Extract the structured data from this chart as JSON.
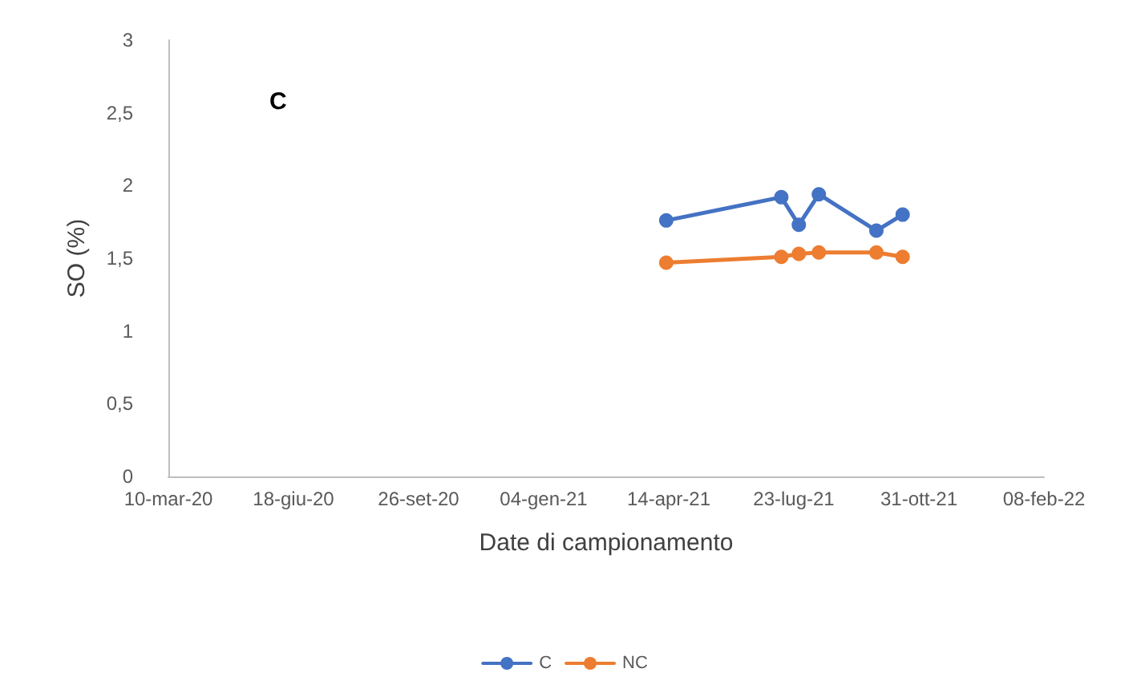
{
  "chart_data": {
    "type": "line",
    "xlabel": "Date di campionamento",
    "ylabel": "SO (%)",
    "annotations": [
      "C"
    ],
    "series": [
      {
        "name": "C",
        "color": "#4472c4",
        "x": [
          "2021-04-12",
          "2021-07-13",
          "2021-07-27",
          "2021-08-12",
          "2021-09-27",
          "2021-10-18"
        ],
        "values": [
          1.76,
          1.92,
          1.73,
          1.94,
          1.69,
          1.8
        ]
      },
      {
        "name": "NC",
        "color": "#ed7d31",
        "x": [
          "2021-04-12",
          "2021-07-13",
          "2021-07-27",
          "2021-08-12",
          "2021-09-27",
          "2021-10-18"
        ],
        "values": [
          1.47,
          1.51,
          1.53,
          1.54,
          1.54,
          1.51
        ]
      }
    ],
    "xlim": [
      "2020-03-10",
      "2022-02-08"
    ],
    "xticks": [
      {
        "value": "2020-03-10",
        "label": "10-mar-20"
      },
      {
        "value": "2020-06-18",
        "label": "18-giu-20"
      },
      {
        "value": "2020-09-26",
        "label": "26-set-20"
      },
      {
        "value": "2021-01-04",
        "label": "04-gen-21"
      },
      {
        "value": "2021-04-14",
        "label": "14-apr-21"
      },
      {
        "value": "2021-07-23",
        "label": "23-lug-21"
      },
      {
        "value": "2021-10-31",
        "label": "31-ott-21"
      },
      {
        "value": "2022-02-08",
        "label": "08-feb-22"
      }
    ],
    "ylim": [
      0,
      3
    ],
    "yticks": [
      0,
      {
        "value": 0.5,
        "label": "0,5"
      },
      1,
      {
        "value": 1.5,
        "label": "1,5"
      },
      2,
      {
        "value": 2.5,
        "label": "2,5"
      },
      3
    ],
    "grid": false,
    "legend": "bottom",
    "marker": "circle",
    "line_style": "solid"
  }
}
